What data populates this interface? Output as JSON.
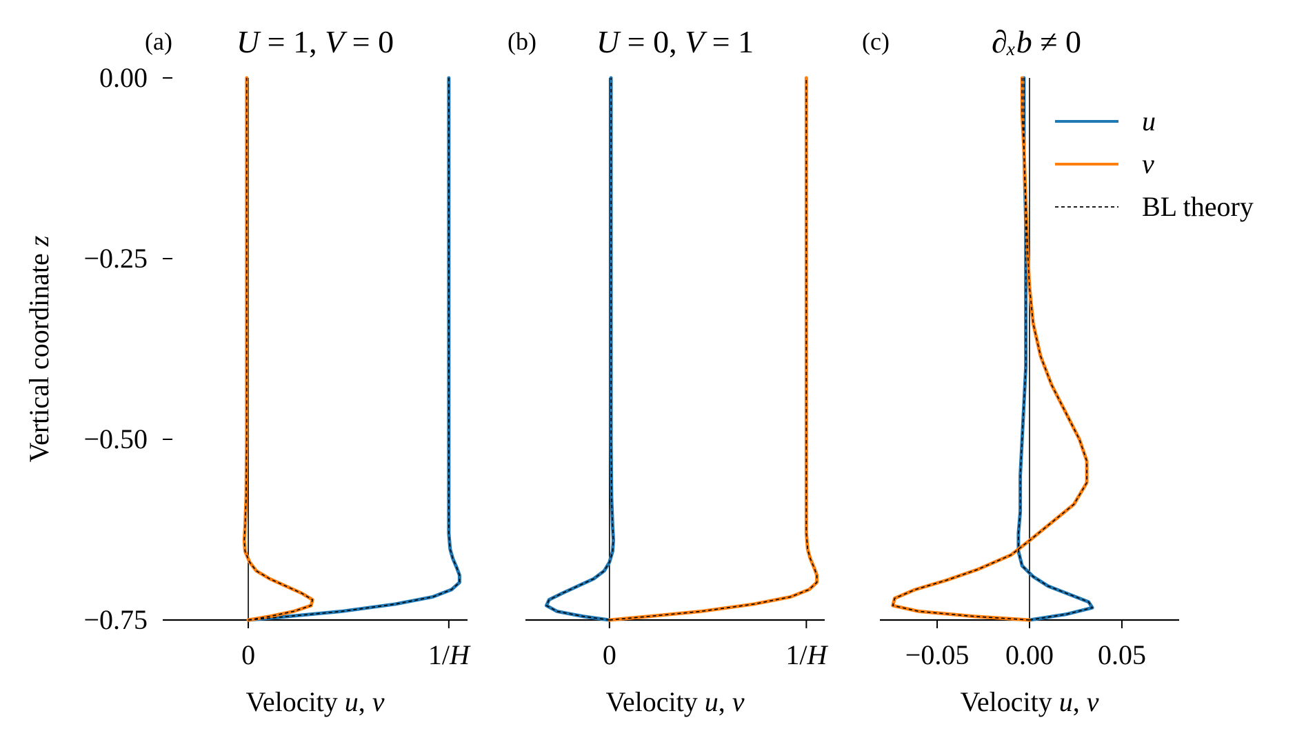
{
  "colors": {
    "u": "#1f77b4",
    "v": "#ff7f0e",
    "theory": "#000000",
    "axis": "#000000"
  },
  "chart_data": [
    {
      "type": "line",
      "tag": "(a)",
      "title": "U = 1,  V = 0",
      "xlabel": "Velocity u, v",
      "ylabel": "Vertical coordinate z",
      "ylim": [
        -0.75,
        0.0
      ],
      "yticks": [
        0.0,
        -0.25,
        -0.5,
        -0.75
      ],
      "ytick_labels": [
        "0.00",
        "−0.25",
        "−0.50",
        "−0.75"
      ],
      "xlim": [
        -0.32,
        0.82
      ],
      "xticks": [
        0.0,
        0.75
      ],
      "xtick_labels": [
        "0",
        "1/H"
      ],
      "zero_line": true,
      "series": [
        {
          "name": "u",
          "color_key": "u",
          "points": [
            [
              0.0,
              -0.75
            ],
            [
              0.15,
              -0.745
            ],
            [
              0.35,
              -0.738
            ],
            [
              0.55,
              -0.728
            ],
            [
              0.69,
              -0.718
            ],
            [
              0.76,
              -0.708
            ],
            [
              0.79,
              -0.698
            ],
            [
              0.79,
              -0.688
            ],
            [
              0.78,
              -0.678
            ],
            [
              0.765,
              -0.665
            ],
            [
              0.755,
              -0.652
            ],
            [
              0.75,
              -0.63
            ],
            [
              0.75,
              -0.6
            ],
            [
              0.75,
              -0.5
            ],
            [
              0.75,
              -0.25
            ],
            [
              0.75,
              0.0
            ]
          ]
        },
        {
          "name": "v",
          "color_key": "v",
          "points": [
            [
              0.0,
              -0.75
            ],
            [
              0.08,
              -0.745
            ],
            [
              0.17,
              -0.738
            ],
            [
              0.235,
              -0.73
            ],
            [
              0.24,
              -0.722
            ],
            [
              0.2,
              -0.713
            ],
            [
              0.14,
              -0.703
            ],
            [
              0.08,
              -0.693
            ],
            [
              0.03,
              -0.682
            ],
            [
              0.005,
              -0.67
            ],
            [
              -0.012,
              -0.655
            ],
            [
              -0.015,
              -0.64
            ],
            [
              -0.012,
              -0.62
            ],
            [
              -0.008,
              -0.58
            ],
            [
              -0.006,
              -0.5
            ],
            [
              -0.006,
              -0.25
            ],
            [
              -0.006,
              0.0
            ]
          ]
        }
      ]
    },
    {
      "type": "line",
      "tag": "(b)",
      "title": "U = 0,  V = 1",
      "xlabel": "Velocity u, v",
      "ylim": [
        -0.75,
        0.0
      ],
      "xlim": [
        -0.32,
        0.82
      ],
      "xticks": [
        0.0,
        0.75
      ],
      "xtick_labels": [
        "0",
        "1/H"
      ],
      "zero_line": true,
      "series": [
        {
          "name": "u",
          "color_key": "u",
          "points": [
            [
              0.0,
              -0.75
            ],
            [
              -0.1,
              -0.745
            ],
            [
              -0.2,
              -0.738
            ],
            [
              -0.24,
              -0.73
            ],
            [
              -0.23,
              -0.722
            ],
            [
              -0.18,
              -0.713
            ],
            [
              -0.12,
              -0.703
            ],
            [
              -0.06,
              -0.693
            ],
            [
              -0.02,
              -0.682
            ],
            [
              0.0,
              -0.67
            ],
            [
              0.012,
              -0.655
            ],
            [
              0.015,
              -0.64
            ],
            [
              0.012,
              -0.62
            ],
            [
              0.008,
              -0.58
            ],
            [
              0.006,
              -0.5
            ],
            [
              0.006,
              -0.25
            ],
            [
              0.006,
              0.0
            ]
          ]
        },
        {
          "name": "v",
          "color_key": "v",
          "points": [
            [
              0.0,
              -0.75
            ],
            [
              0.15,
              -0.745
            ],
            [
              0.35,
              -0.738
            ],
            [
              0.55,
              -0.728
            ],
            [
              0.69,
              -0.718
            ],
            [
              0.76,
              -0.708
            ],
            [
              0.79,
              -0.698
            ],
            [
              0.79,
              -0.688
            ],
            [
              0.78,
              -0.678
            ],
            [
              0.765,
              -0.665
            ],
            [
              0.755,
              -0.652
            ],
            [
              0.75,
              -0.63
            ],
            [
              0.75,
              -0.6
            ],
            [
              0.75,
              -0.5
            ],
            [
              0.75,
              -0.25
            ],
            [
              0.75,
              0.0
            ]
          ]
        }
      ]
    },
    {
      "type": "line",
      "tag": "(c)",
      "title": "∂ₓb ≠ 0",
      "xlabel": "Velocity u, v",
      "ylim": [
        -0.75,
        0.0
      ],
      "xlim": [
        -0.081,
        0.081
      ],
      "xticks": [
        -0.05,
        0.0,
        0.05
      ],
      "xtick_labels": [
        "−0.05",
        "0.00",
        "0.05"
      ],
      "zero_line": true,
      "series": [
        {
          "name": "u",
          "color_key": "u",
          "points": [
            [
              0.0,
              -0.75
            ],
            [
              0.02,
              -0.742
            ],
            [
              0.034,
              -0.733
            ],
            [
              0.032,
              -0.725
            ],
            [
              0.022,
              -0.715
            ],
            [
              0.01,
              -0.703
            ],
            [
              0.002,
              -0.69
            ],
            [
              -0.004,
              -0.675
            ],
            [
              -0.006,
              -0.655
            ],
            [
              -0.006,
              -0.63
            ],
            [
              -0.005,
              -0.6
            ],
            [
              -0.005,
              -0.55
            ],
            [
              -0.004,
              -0.5
            ],
            [
              -0.003,
              -0.45
            ],
            [
              -0.002,
              -0.4
            ],
            [
              -0.002,
              -0.3
            ],
            [
              -0.002,
              -0.2
            ],
            [
              -0.003,
              -0.1
            ],
            [
              -0.003,
              0.0
            ]
          ]
        },
        {
          "name": "v",
          "color_key": "v",
          "points": [
            [
              0.0,
              -0.75
            ],
            [
              -0.03,
              -0.745
            ],
            [
              -0.06,
              -0.738
            ],
            [
              -0.074,
              -0.73
            ],
            [
              -0.073,
              -0.72
            ],
            [
              -0.062,
              -0.708
            ],
            [
              -0.045,
              -0.695
            ],
            [
              -0.028,
              -0.68
            ],
            [
              -0.01,
              -0.66
            ],
            [
              0.0,
              -0.64
            ],
            [
              0.012,
              -0.615
            ],
            [
              0.024,
              -0.59
            ],
            [
              0.031,
              -0.56
            ],
            [
              0.031,
              -0.53
            ],
            [
              0.027,
              -0.5
            ],
            [
              0.02,
              -0.465
            ],
            [
              0.012,
              -0.425
            ],
            [
              0.006,
              -0.385
            ],
            [
              0.002,
              -0.34
            ],
            [
              0.0,
              -0.29
            ],
            [
              -0.001,
              -0.24
            ],
            [
              -0.002,
              -0.17
            ],
            [
              -0.003,
              -0.1
            ],
            [
              -0.004,
              -0.05
            ],
            [
              -0.004,
              0.0
            ]
          ]
        }
      ],
      "legend": {
        "position": "top-right",
        "entries": [
          {
            "label": "u",
            "color_key": "u",
            "style": "solid"
          },
          {
            "label": "v",
            "color_key": "v",
            "style": "solid"
          },
          {
            "label": "BL theory",
            "color_key": "theory",
            "style": "dashed"
          }
        ]
      }
    }
  ]
}
